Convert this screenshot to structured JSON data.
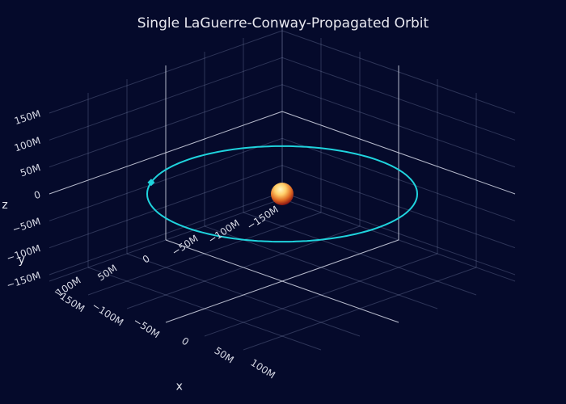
{
  "chart_data": {
    "type": "scatter3d",
    "title": "Single LaGuerre-Conway-Propagated Orbit",
    "axes": {
      "x": {
        "title": "x",
        "ticks": [
          "−150M",
          "−100M",
          "−50M",
          "0",
          "50M",
          "100M"
        ]
      },
      "y": {
        "title": "y",
        "ticks": [
          "−150M",
          "−100M",
          "−50M",
          "0",
          "50M",
          "100M"
        ]
      },
      "z": {
        "title": "z",
        "ticks": [
          "−150M",
          "−100M",
          "−50M",
          "0",
          "50M",
          "100M",
          "150M"
        ]
      }
    },
    "series": [
      {
        "kind": "orbit",
        "mode": "lines",
        "color": "#1fd3dd",
        "shape": "ellipse",
        "a": 150000000,
        "b": 150000000,
        "z": 0
      },
      {
        "kind": "spacecraft",
        "mode": "marker",
        "color": "#1fd3dd",
        "symbol": "diamond"
      },
      {
        "kind": "central-body",
        "mode": "sphere",
        "colorscale": [
          "#fff6b0",
          "#ffb84a",
          "#d04818",
          "#7a1010"
        ]
      }
    ],
    "grid": true,
    "legend": "none"
  }
}
